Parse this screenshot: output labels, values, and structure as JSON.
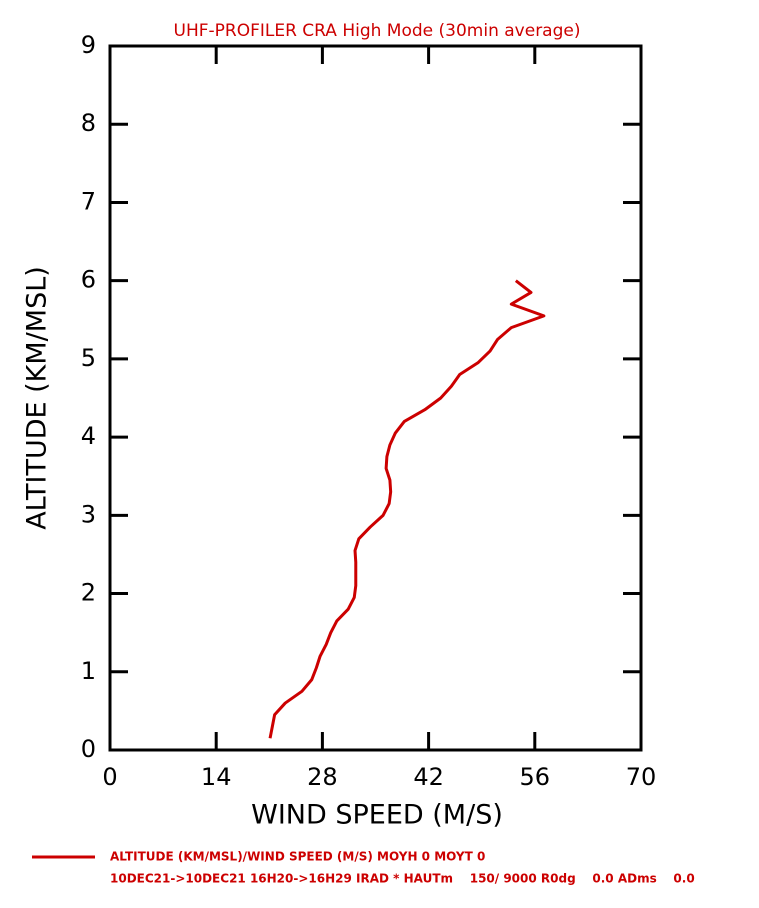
{
  "chart_data": {
    "type": "line",
    "title": "UHF-PROFILER CRA High Mode (30min average)",
    "xlabel": "WIND SPEED (M/S)",
    "ylabel": "ALTITUDE (KM/MSL)",
    "footer": "10DEC21->10DEC21 16H20->16H29 IRAD * HAUTm    150/ 9000 R0dg    0.0 ADms    0.0",
    "xlim": [
      0,
      70
    ],
    "xticks": [
      0,
      14,
      28,
      42,
      56,
      70
    ],
    "ylim": [
      0,
      9
    ],
    "yticks": [
      0,
      1,
      2,
      3,
      4,
      5,
      6,
      7,
      8,
      9
    ],
    "series": [
      {
        "name": "ALTITUDE (KM/MSL)/WIND SPEED (M/S) MOYH 0 MOYT 0",
        "color": "#cc0000",
        "x": [
          21.1,
          21.4,
          21.7,
          23.1,
          25.3,
          26.6,
          27.2,
          27.7,
          28.5,
          29.1,
          29.9,
          31.4,
          32.2,
          32.4,
          32.4,
          32.4,
          32.3,
          32.8,
          34.3,
          36.0,
          36.8,
          37.0,
          36.9,
          36.4,
          36.5,
          36.9,
          37.6,
          38.8,
          41.5,
          43.6,
          45.0,
          46.1,
          48.5,
          50.1,
          51.1,
          52.9,
          57.2,
          52.9,
          55.5,
          53.5
        ],
        "values": [
          0.15,
          0.3,
          0.45,
          0.6,
          0.75,
          0.9,
          1.05,
          1.2,
          1.35,
          1.5,
          1.65,
          1.8,
          1.95,
          2.1,
          2.25,
          2.4,
          2.55,
          2.7,
          2.85,
          3.0,
          3.15,
          3.3,
          3.45,
          3.6,
          3.75,
          3.9,
          4.05,
          4.2,
          4.35,
          4.5,
          4.65,
          4.8,
          4.95,
          5.1,
          5.25,
          5.4,
          5.55,
          5.7,
          5.85,
          6.0
        ]
      }
    ]
  }
}
